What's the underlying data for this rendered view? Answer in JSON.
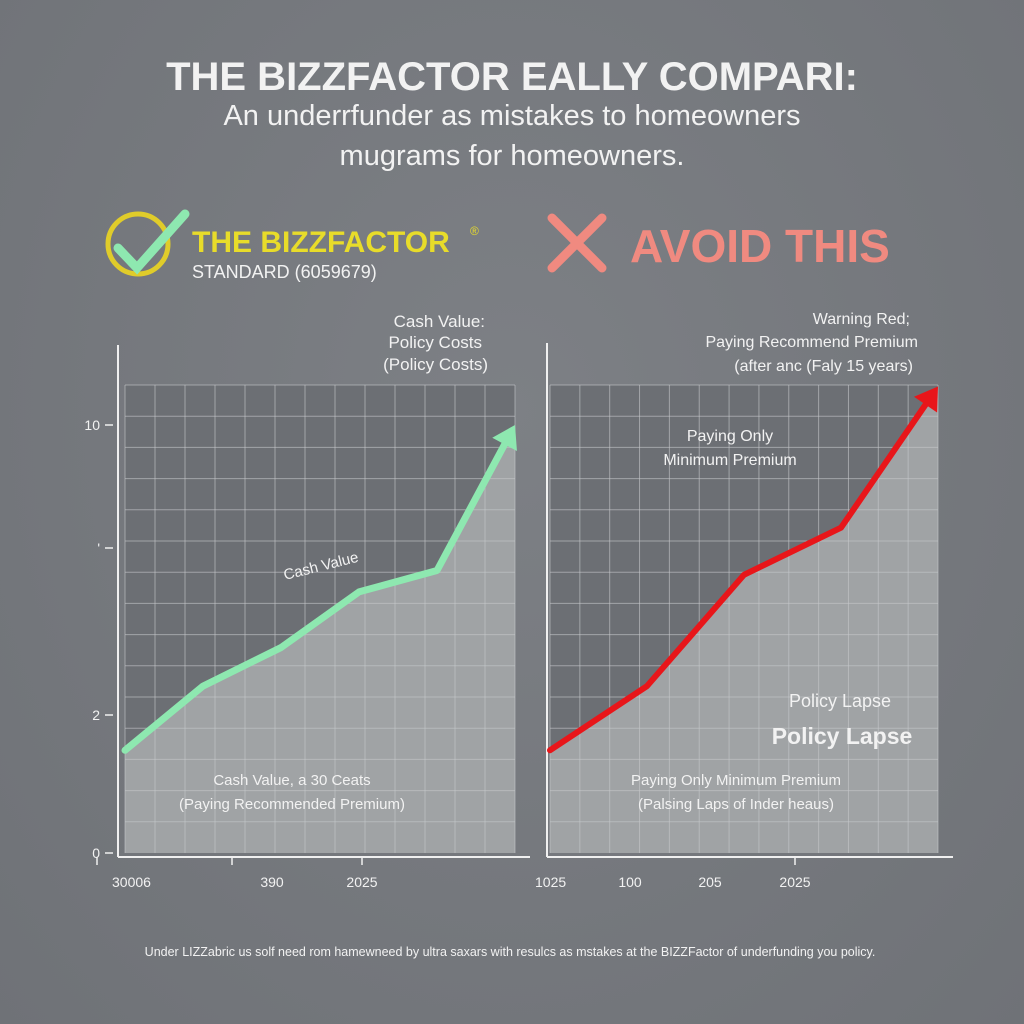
{
  "header": {
    "title": "THE BIZZFACTOR EALLY COMPARI:",
    "subtitle_line1": "An underrfunder as mistakes to homeowners",
    "subtitle_line2": "mugrams for homeowners."
  },
  "left_panel": {
    "badge_icon": "check-circle-icon",
    "title": "THE BIZZFACTOR",
    "title_mark": "®",
    "subtitle": "STANDARD (6059679)",
    "annotation": [
      "Cash Value:",
      "Policy Costs",
      "(Policy Costs)"
    ],
    "line_label": "Cash  Value",
    "bottom_note": [
      "Cash Value, a 30 Ceats",
      "(Paying Recommended Premium)"
    ]
  },
  "right_panel": {
    "badge_icon": "x-cross-icon",
    "title": "AVOID THIS",
    "annotation": [
      "Warning Red;",
      "Paying Recommend Premium",
      "(after anc (Faly 15 years)"
    ],
    "mid_note": [
      "Paying Only",
      "Minimum Premium"
    ],
    "lapse_small": "Policy Lapse",
    "lapse_large": "Policy Lapse",
    "bottom_note": [
      "Paying Only Minimum Premium",
      "(Palsing Laps of Inder heaus)"
    ]
  },
  "footer": "Under LIZZabric us solf need rom hamewneed by ultra saxars with resulcs as mstakes at the BIZZFactor of underfunding you policy.",
  "colors": {
    "good": "#8ee8b0",
    "bad": "#e8161a",
    "title_good": "#e8dc2a",
    "title_bad": "#f08a80"
  },
  "chart_data": [
    {
      "type": "area",
      "y_tick_labels": [
        "0",
        "2",
        "'",
        "10"
      ],
      "x_tick_labels": [
        "30006",
        "390",
        "2025"
      ],
      "ylim": [
        0,
        10
      ],
      "grid": true,
      "series": [
        {
          "values": [
            2.4,
            3.9,
            4.8,
            6.1,
            6.6,
            10
          ]
        }
      ],
      "line_color": "#8ee8b0"
    },
    {
      "type": "area",
      "x_tick_labels": [
        "1025",
        "100",
        "205",
        "2025"
      ],
      "ylim": [
        0,
        10
      ],
      "grid": true,
      "series": [
        {
          "values": [
            2.4,
            3.9,
            6.5,
            7.6,
            10.9
          ]
        }
      ],
      "line_color": "#e8161a"
    }
  ]
}
